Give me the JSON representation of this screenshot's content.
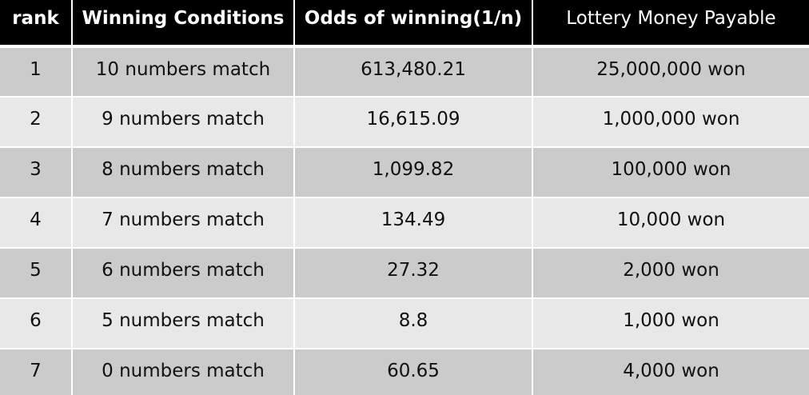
{
  "table": {
    "headers": {
      "rank": "rank",
      "conditions": "Winning Conditions",
      "odds": "Odds of winning(1/n)",
      "payable": "Lottery Money Payable"
    },
    "rows": [
      {
        "rank": "1",
        "condition": "10 numbers match",
        "odds": "613,480.21",
        "payable": "25,000,000 won"
      },
      {
        "rank": "2",
        "condition": "9 numbers match",
        "odds": "16,615.09",
        "payable": "1,000,000 won"
      },
      {
        "rank": "3",
        "condition": "8 numbers match",
        "odds": "1,099.82",
        "payable": "100,000 won"
      },
      {
        "rank": "4",
        "condition": "7 numbers match",
        "odds": "134.49",
        "payable": "10,000 won"
      },
      {
        "rank": "5",
        "condition": "6 numbers match",
        "odds": "27.32",
        "payable": "2,000 won"
      },
      {
        "rank": "6",
        "condition": "5 numbers match",
        "odds": "8.8",
        "payable": "1,000 won"
      },
      {
        "rank": "7",
        "condition": "0 numbers match",
        "odds": "60.65",
        "payable": "4,000 won"
      }
    ]
  },
  "colors": {
    "header_background": "#000000",
    "header_text": "#ffffff",
    "row_dark": "#cbcbcb",
    "row_light": "#e8e8e8",
    "grid_lines": "#ffffff"
  }
}
